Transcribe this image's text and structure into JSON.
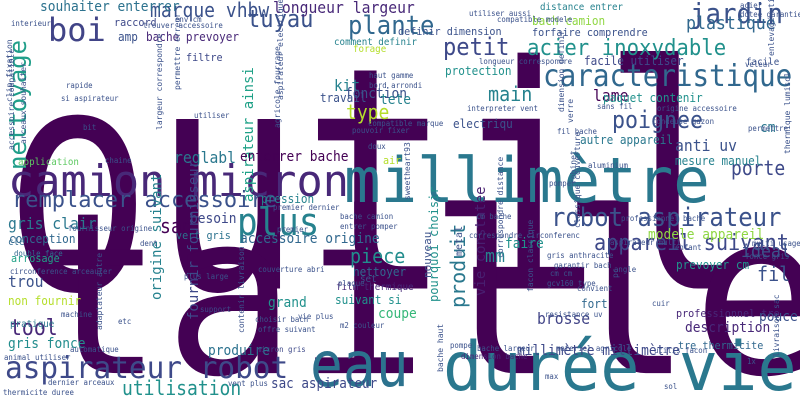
{
  "words": [
    {
      "t": "outil",
      "c": "#440154"
    },
    {
      "t": "taille",
      "c": "#440154"
    },
    {
      "t": "millimètre",
      "c": "#2a788e"
    },
    {
      "t": "durée vie",
      "c": "#2a788e"
    },
    {
      "t": "eau",
      "c": "#2c728e"
    },
    {
      "t": "camion micron",
      "c": "#482878"
    },
    {
      "t": "aspirateur robot",
      "c": "#3e4989"
    },
    {
      "t": "caracteristique",
      "c": "#31688e"
    },
    {
      "t": "remplacer accessoire",
      "c": "#3b528b"
    },
    {
      "t": "robot aspirateur",
      "c": "#3b528b"
    },
    {
      "t": "plus",
      "c": "#26828e"
    },
    {
      "t": "boi",
      "c": "#414487"
    },
    {
      "t": "tuyau",
      "c": "#3b528b"
    },
    {
      "t": "plante",
      "c": "#31688e"
    },
    {
      "t": "jardin",
      "c": "#3b528b"
    },
    {
      "t": "acier inoxydable",
      "c": "#21918c"
    },
    {
      "t": "petit",
      "c": "#3e4989"
    },
    {
      "t": "poignee",
      "c": "#3b528b"
    },
    {
      "t": "appareil suivant",
      "c": "#3e4989"
    },
    {
      "t": "marque vhbw",
      "c": "#3b528b"
    },
    {
      "t": "nettoyage",
      "c": "#1f9e89"
    },
    {
      "t": "type",
      "c": "#b5de2b"
    },
    {
      "t": "san",
      "c": "#440154"
    },
    {
      "t": "tool",
      "c": "#482878"
    },
    {
      "t": "produit",
      "c": "#2a788e"
    },
    {
      "t": "utilisation",
      "c": "#21918c"
    },
    {
      "t": "piece",
      "c": "#228d8d"
    },
    {
      "t": "main",
      "c": "#26828e"
    },
    {
      "t": "plastique",
      "c": "#31688e"
    },
    {
      "t": "porte",
      "c": "#3e4989"
    },
    {
      "t": "fil",
      "c": "#3b528b"
    },
    {
      "t": "ideal",
      "c": "#3b528b"
    },
    {
      "t": "lame",
      "c": "#440154"
    },
    {
      "t": "souhaiter enterrer",
      "c": "#2c728e"
    },
    {
      "t": "longueur largeur",
      "c": "#482878"
    },
    {
      "t": "anti uv",
      "c": "#3b528b"
    },
    {
      "t": "gris clair",
      "c": "#2a788e"
    },
    {
      "t": "trou",
      "c": "#3b528b"
    },
    {
      "t": "kit",
      "c": "#26828e"
    },
    {
      "t": "brosse",
      "c": "#414487"
    },
    {
      "t": "coupe",
      "c": "#35b779"
    },
    {
      "t": "mm",
      "c": "#26828e"
    },
    {
      "t": "reglabl",
      "c": "#2a788e"
    },
    {
      "t": "sac aspirateur",
      "c": "#3e4989"
    },
    {
      "t": "gris fonce",
      "c": "#228d8d"
    },
    {
      "t": "accessoire origine",
      "c": "#31688e"
    },
    {
      "t": "modele appareil",
      "c": "#8fd744"
    },
    {
      "t": "millimètre millimètre",
      "c": "#3e4989"
    },
    {
      "t": "vie constatee",
      "c": "#481f70"
    },
    {
      "t": "aspirateur ainsi",
      "c": "#1fa187"
    },
    {
      "t": "enterrer bache",
      "c": "#440154"
    },
    {
      "t": "fonction",
      "c": "#3b528b"
    },
    {
      "t": "tete",
      "c": "#26828e"
    },
    {
      "t": "travail",
      "c": "#3b528b"
    },
    {
      "t": "paquet contenir",
      "c": "#21918c"
    },
    {
      "t": "amp",
      "c": "#3b528b"
    },
    {
      "t": "bache prevoyer",
      "c": "#482878"
    },
    {
      "t": "cm",
      "c": "#2a788e"
    },
    {
      "t": "description",
      "c": "#482878"
    },
    {
      "t": "pouce",
      "c": "#3b528b"
    },
    {
      "t": "protection",
      "c": "#21918c"
    },
    {
      "t": "faire",
      "c": "#21918c"
    },
    {
      "t": "electriqu",
      "c": "#3b528b"
    },
    {
      "t": "besoin",
      "c": "#3e4989"
    },
    {
      "t": "conception",
      "c": "#31688e"
    },
    {
      "t": "origine suivant",
      "c": "#26828e"
    },
    {
      "t": "grand",
      "c": "#21918c"
    },
    {
      "t": "produire",
      "c": "#2c728e"
    },
    {
      "t": "fournir fournisseur",
      "c": "#3e4989"
    },
    {
      "t": "suivant si",
      "c": "#21918c"
    },
    {
      "t": "autre appareil",
      "c": "#2a788e"
    },
    {
      "t": "fort",
      "c": "#31688e"
    },
    {
      "t": "nettoyer",
      "c": "#31688e"
    },
    {
      "t": "pression",
      "c": "#26828e"
    },
    {
      "t": "mesure manuel",
      "c": "#26828e"
    },
    {
      "t": "non fournir",
      "c": "#b5de2b"
    },
    {
      "t": "arrosage",
      "c": "#1fa187"
    },
    {
      "t": "facile utiliser",
      "c": "#3e4989"
    },
    {
      "t": "bach camion",
      "c": "#90d743"
    },
    {
      "t": "raccord",
      "c": "#3e4989"
    },
    {
      "t": "filtre",
      "c": "#3e4989"
    },
    {
      "t": "vert gris",
      "c": "#2c728e"
    },
    {
      "t": "forfaire comprendre",
      "c": "#3b528b"
    },
    {
      "t": "pourquoi choisir",
      "c": "#21918c"
    },
    {
      "t": "prevoyer cm",
      "c": "#21918c"
    },
    {
      "t": "tre thermicite",
      "c": "#31688e"
    },
    {
      "t": "professionnel tre",
      "c": "#482878"
    },
    {
      "t": "definir dimension",
      "c": "#3b528b"
    },
    {
      "t": "distance entrer",
      "c": "#26828e"
    },
    {
      "t": "comment definir",
      "c": "#26828e"
    },
    {
      "t": "application",
      "c": "#5ec962"
    },
    {
      "t": "pratique",
      "c": "#2a788e"
    },
    {
      "t": "clé",
      "c": "#31688e"
    },
    {
      "t": "air",
      "c": "#b5de2b"
    },
    {
      "t": "set",
      "c": "#3b528b"
    },
    {
      "t": "film thermique",
      "c": "#482878"
    },
    {
      "t": "nouveau",
      "c": "#3b528b"
    },
    {
      "t": "metal",
      "c": "#3b528b"
    },
    {
      "t": "dimension bache",
      "c": "#482878"
    },
    {
      "t": "aspirateur multi",
      "c": "#3b528b"
    },
    {
      "t": "enfant",
      "c": "#3b528b"
    },
    {
      "t": "angle",
      "c": "#3b528b"
    },
    {
      "t": "double face",
      "c": "#31688e"
    },
    {
      "t": "circonference arceauler",
      "c": "#3b528b"
    },
    {
      "t": "micron gris",
      "c": "#3e4989"
    },
    {
      "t": "etc",
      "c": "#3b528b"
    },
    {
      "t": "support",
      "c": "#3e4989"
    },
    {
      "t": "forage",
      "c": "#b5de2b"
    },
    {
      "t": "plaque",
      "c": "#3b528b"
    },
    {
      "t": "env cm",
      "c": "#3b528b"
    },
    {
      "t": "utiliser",
      "c": "#3b528b"
    },
    {
      "t": "interieur",
      "c": "#3b528b"
    },
    {
      "t": "trouver accessoire",
      "c": "#3b528b"
    },
    {
      "t": "compatible modele",
      "c": "#3b528b"
    },
    {
      "t": "acier",
      "c": "#3b528b"
    },
    {
      "t": "dotee garantie",
      "c": "#3b528b"
    },
    {
      "t": "veleur",
      "c": "#3b528b"
    },
    {
      "t": "rapide",
      "c": "#3b528b"
    },
    {
      "t": "si aspirateur",
      "c": "#3b528b"
    },
    {
      "t": "bit",
      "c": "#3b528b"
    },
    {
      "t": "haut gamme",
      "c": "#3b528b"
    },
    {
      "t": "bord arrondi",
      "c": "#3b528b"
    },
    {
      "t": "longueur correspondre",
      "c": "#3b528b"
    },
    {
      "t": "interpreter vent",
      "c": "#3b528b"
    },
    {
      "t": "compatible marque",
      "c": "#3b528b"
    },
    {
      "t": "pouvoir fixer",
      "c": "#3b528b"
    },
    {
      "t": "origine accessoire",
      "c": "#3b528b"
    },
    {
      "t": "tondeuse gazon",
      "c": "#3b528b"
    },
    {
      "t": "permettre",
      "c": "#3b528b"
    },
    {
      "t": "doux",
      "c": "#3b528b"
    },
    {
      "t": "chaine",
      "c": "#3b528b"
    },
    {
      "t": "pomper",
      "c": "#3b528b"
    },
    {
      "t": "enlevage utilis",
      "c": "#3b528b"
    },
    {
      "t": "fournisseur origine",
      "c": "#3b528b"
    },
    {
      "t": "cm bache",
      "c": "#3b528b"
    },
    {
      "t": "bache camion",
      "c": "#3b528b"
    },
    {
      "t": "entrer pomper",
      "c": "#3b528b"
    },
    {
      "t": "correspondre circonferenc",
      "c": "#3b528b"
    },
    {
      "t": "gris anthracite",
      "c": "#3b528b"
    },
    {
      "t": "garantir bach",
      "c": "#3b528b"
    },
    {
      "t": "convient",
      "c": "#3b528b"
    },
    {
      "t": "multi usage",
      "c": "#3b528b"
    },
    {
      "t": "fonce gris",
      "c": "#3b528b"
    },
    {
      "t": "cm cm",
      "c": "#3b528b"
    },
    {
      "t": "gcv160 type",
      "c": "#3b528b"
    },
    {
      "t": "cuir",
      "c": "#3b528b"
    },
    {
      "t": "resistance uv",
      "c": "#3b528b"
    },
    {
      "t": "utilis facon",
      "c": "#3b528b"
    },
    {
      "t": "sol",
      "c": "#3b528b"
    },
    {
      "t": "max",
      "c": "#3b528b"
    },
    {
      "t": "pc",
      "c": "#3b528b"
    },
    {
      "t": "1x",
      "c": "#3b528b"
    },
    {
      "t": "choisir bach",
      "c": "#3b528b"
    },
    {
      "t": "offre suivant",
      "c": "#3b528b"
    },
    {
      "t": "vie plus",
      "c": "#3b528b"
    },
    {
      "t": "m2 couleur",
      "c": "#3b528b"
    },
    {
      "t": "pompe",
      "c": "#3b528b"
    },
    {
      "t": "bache largeur",
      "c": "#3b528b"
    },
    {
      "t": "vent plus",
      "c": "#3b528b"
    },
    {
      "t": "dernier arceaux",
      "c": "#3b528b"
    },
    {
      "t": "thermicite duree",
      "c": "#3b528b"
    },
    {
      "t": "automatique",
      "c": "#3b528b"
    },
    {
      "t": "animal utiliser",
      "c": "#3b528b"
    },
    {
      "t": "machine",
      "c": "#3b528b"
    },
    {
      "t": "accessoire compatible",
      "c": "#3b528b"
    },
    {
      "t": "couverture abri",
      "c": "#3b528b"
    },
    {
      "t": "plus large",
      "c": "#3b528b"
    },
    {
      "t": "premier dernier",
      "c": "#3b528b"
    },
    {
      "t": "dent",
      "c": "#3b528b"
    },
    {
      "t": "bache haut",
      "c": "#3b528b"
    },
    {
      "t": "livraison sac",
      "c": "#3b528b"
    },
    {
      "t": "thermique lumisol",
      "c": "#3b528b"
    },
    {
      "t": "professionnel bache",
      "c": "#3b528b"
    },
    {
      "t": "aluminium",
      "c": "#3b528b"
    },
    {
      "t": "dimension definir",
      "c": "#3b528b"
    },
    {
      "t": "sweetheart93",
      "c": "#3b528b"
    },
    {
      "t": "contenir livraison",
      "c": "#3b528b"
    },
    {
      "t": "adaptateur autre",
      "c": "#3b528b"
    },
    {
      "t": "clip fixation",
      "c": "#3b528b"
    },
    {
      "t": "arceaux souhaiter",
      "c": "#3b528b"
    },
    {
      "t": "classique couverture",
      "c": "#3b528b"
    },
    {
      "t": "facon classique",
      "c": "#3b528b"
    },
    {
      "t": "correspondre distance",
      "c": "#3b528b"
    },
    {
      "t": "robinet",
      "c": "#3b528b"
    },
    {
      "t": "materiel agricole",
      "c": "#3b528b"
    },
    {
      "t": "fil bache",
      "c": "#3b528b"
    },
    {
      "t": "verre",
      "c": "#3b528b"
    },
    {
      "t": "agricole fourrage",
      "c": "#3b528b"
    },
    {
      "t": "aspirateur electrique",
      "c": "#3b528b"
    },
    {
      "t": "largeur correspondre",
      "c": "#3b528b"
    },
    {
      "t": "permettre erreur",
      "c": "#3b528b"
    },
    {
      "t": "sans fil",
      "c": "#3b528b"
    },
    {
      "t": "facile",
      "c": "#3b528b"
    },
    {
      "t": "utiliser aussi",
      "c": "#3b528b"
    },
    {
      "t": "premier",
      "c": "#3b528b"
    }
  ]
}
